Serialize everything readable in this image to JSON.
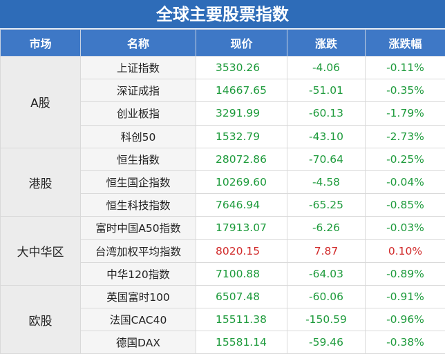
{
  "title": "全球主要股票指数",
  "table": {
    "headers": [
      "市场",
      "名称",
      "现价",
      "涨跌",
      "涨跌幅"
    ],
    "groups": [
      {
        "market": "A股",
        "rows": [
          [
            "上证指数",
            "3530.26",
            "-4.06",
            "-0.11%"
          ],
          [
            "深证成指",
            "14667.65",
            "-51.01",
            "-0.35%"
          ],
          [
            "创业板指",
            "3291.99",
            "-60.13",
            "-1.79%"
          ],
          [
            "科创50",
            "1532.79",
            "-43.10",
            "-2.73%"
          ]
        ]
      },
      {
        "market": "港股",
        "rows": [
          [
            "恒生指数",
            "28072.86",
            "-70.64",
            "-0.25%"
          ],
          [
            "恒生国企指数",
            "10269.60",
            "-4.58",
            "-0.04%"
          ],
          [
            "恒生科技指数",
            "7646.94",
            "-65.25",
            "-0.85%"
          ]
        ]
      },
      {
        "market": "大中华区",
        "rows": [
          [
            "富时中国A50指数",
            "17913.07",
            "-6.26",
            "-0.03%"
          ],
          [
            "台湾加权平均指数",
            "8020.15",
            "7.87",
            "0.10%"
          ],
          [
            "中华120指数",
            "7100.88",
            "-64.03",
            "-0.89%"
          ]
        ]
      },
      {
        "market": "欧股",
        "rows": [
          [
            "英国富时100",
            "6507.48",
            "-60.06",
            "-0.91%"
          ],
          [
            "法国CAC40",
            "15511.38",
            "-150.59",
            "-0.96%"
          ],
          [
            "德国DAX",
            "15581.14",
            "-59.46",
            "-0.38%"
          ]
        ]
      }
    ]
  }
}
